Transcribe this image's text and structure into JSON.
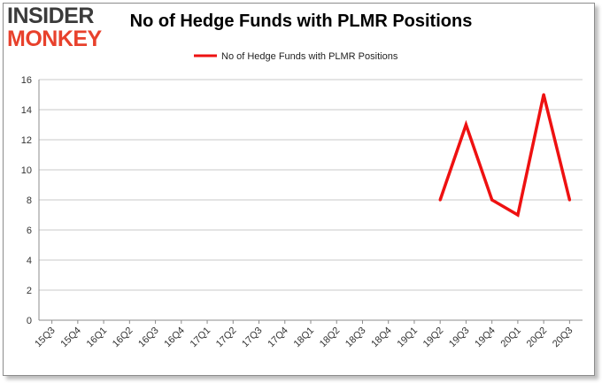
{
  "logo": {
    "line1": "INSIDER",
    "line2": "MONKEY"
  },
  "chart_data": {
    "type": "line",
    "title": "No of Hedge Funds with PLMR Positions",
    "xlabel": "",
    "ylabel": "",
    "categories": [
      "15Q3",
      "15Q4",
      "16Q1",
      "16Q2",
      "16Q3",
      "16Q4",
      "17Q1",
      "17Q2",
      "17Q3",
      "17Q4",
      "18Q1",
      "18Q2",
      "18Q3",
      "18Q4",
      "19Q1",
      "19Q2",
      "19Q3",
      "19Q4",
      "20Q1",
      "20Q2",
      "20Q3"
    ],
    "series": [
      {
        "name": "No of Hedge Funds with PLMR Positions",
        "color": "#ee1111",
        "values": [
          null,
          null,
          null,
          null,
          null,
          null,
          null,
          null,
          null,
          null,
          null,
          null,
          null,
          null,
          null,
          8,
          13,
          8,
          7,
          15,
          8
        ]
      }
    ],
    "ylim": [
      0,
      16
    ],
    "yticks": [
      0,
      2,
      4,
      6,
      8,
      10,
      12,
      14,
      16
    ],
    "grid": true,
    "legend": "top-center"
  }
}
